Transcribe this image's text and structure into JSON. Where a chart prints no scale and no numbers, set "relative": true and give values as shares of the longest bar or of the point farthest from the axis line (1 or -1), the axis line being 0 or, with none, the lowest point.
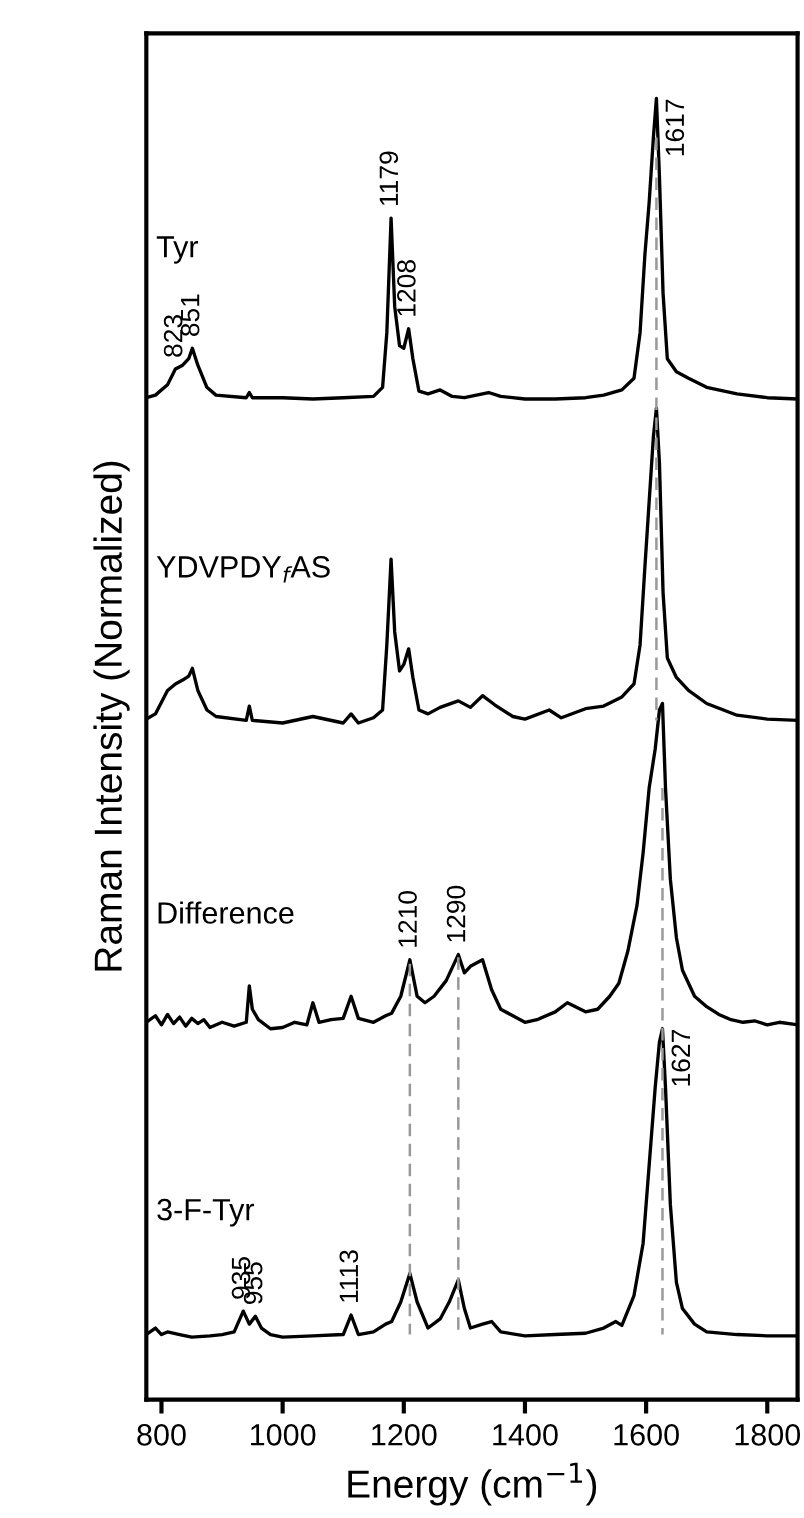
{
  "chart_data": {
    "type": "line",
    "relative": true,
    "xlabel": "Energy (cm$^{−1}$)",
    "ylabel": "Raman Intensity (Normalized)",
    "xlim": [
      775,
      1850
    ],
    "xticks": [
      800,
      1000,
      1200,
      1400,
      1600,
      1800
    ],
    "grid": false,
    "legend": false,
    "marker": "none",
    "series": [
      {
        "name": "Tyr",
        "color": "#000000",
        "line_style": "solid",
        "x": [
          775,
          790,
          810,
          823,
          835,
          845,
          851,
          860,
          875,
          890,
          940,
          945,
          950,
          1000,
          1050,
          1100,
          1150,
          1165,
          1172,
          1179,
          1185,
          1193,
          1200,
          1208,
          1215,
          1225,
          1240,
          1260,
          1280,
          1300,
          1320,
          1340,
          1360,
          1400,
          1450,
          1500,
          1530,
          1560,
          1580,
          1590,
          1598,
          1605,
          1612,
          1617,
          1622,
          1628,
          1635,
          1650,
          1670,
          1700,
          1750,
          1800,
          1850
        ],
        "values": [
          0.77,
          0.772,
          0.78,
          0.792,
          0.795,
          0.8,
          0.808,
          0.795,
          0.778,
          0.772,
          0.77,
          0.774,
          0.77,
          0.77,
          0.769,
          0.77,
          0.771,
          0.778,
          0.82,
          0.908,
          0.84,
          0.81,
          0.808,
          0.823,
          0.8,
          0.775,
          0.773,
          0.776,
          0.771,
          0.77,
          0.772,
          0.774,
          0.771,
          0.769,
          0.769,
          0.77,
          0.772,
          0.776,
          0.785,
          0.82,
          0.88,
          0.92,
          0.97,
          1.0,
          0.94,
          0.85,
          0.8,
          0.79,
          0.785,
          0.778,
          0.773,
          0.77,
          0.769
        ]
      },
      {
        "name": "YDVPDY$_{f}$AS",
        "color": "#000000",
        "line_style": "solid",
        "x": [
          775,
          790,
          810,
          823,
          835,
          845,
          851,
          860,
          875,
          890,
          940,
          945,
          950,
          1000,
          1050,
          1100,
          1113,
          1125,
          1150,
          1165,
          1172,
          1179,
          1185,
          1193,
          1200,
          1208,
          1215,
          1225,
          1240,
          1260,
          1290,
          1310,
          1330,
          1350,
          1380,
          1400,
          1440,
          1460,
          1500,
          1530,
          1560,
          1580,
          1590,
          1598,
          1605,
          1612,
          1617,
          1622,
          1628,
          1635,
          1650,
          1670,
          1700,
          1750,
          1800,
          1850
        ],
        "values": [
          0.523,
          0.527,
          0.545,
          0.55,
          0.553,
          0.556,
          0.562,
          0.545,
          0.53,
          0.525,
          0.522,
          0.533,
          0.522,
          0.52,
          0.525,
          0.52,
          0.527,
          0.52,
          0.524,
          0.53,
          0.58,
          0.646,
          0.59,
          0.56,
          0.565,
          0.577,
          0.555,
          0.53,
          0.527,
          0.532,
          0.537,
          0.532,
          0.541,
          0.534,
          0.525,
          0.523,
          0.53,
          0.524,
          0.531,
          0.533,
          0.54,
          0.55,
          0.58,
          0.64,
          0.69,
          0.74,
          0.762,
          0.72,
          0.62,
          0.57,
          0.555,
          0.545,
          0.535,
          0.526,
          0.523,
          0.522
        ]
      },
      {
        "name": "Difference",
        "color": "#000000",
        "line_style": "solid",
        "x": [
          775,
          790,
          800,
          810,
          820,
          830,
          840,
          850,
          860,
          870,
          880,
          900,
          920,
          940,
          945,
          950,
          960,
          980,
          1000,
          1020,
          1040,
          1050,
          1060,
          1080,
          1100,
          1113,
          1125,
          1150,
          1170,
          1180,
          1195,
          1210,
          1222,
          1235,
          1250,
          1270,
          1290,
          1300,
          1310,
          1330,
          1345,
          1360,
          1380,
          1400,
          1420,
          1450,
          1470,
          1500,
          1520,
          1540,
          1555,
          1570,
          1585,
          1595,
          1605,
          1615,
          1622,
          1627,
          1632,
          1640,
          1650,
          1660,
          1680,
          1700,
          1720,
          1740,
          1760,
          1780,
          1800,
          1820,
          1850
        ],
        "values": [
          0.29,
          0.295,
          0.288,
          0.296,
          0.289,
          0.294,
          0.287,
          0.293,
          0.289,
          0.292,
          0.286,
          0.29,
          0.287,
          0.29,
          0.318,
          0.3,
          0.292,
          0.285,
          0.286,
          0.29,
          0.288,
          0.305,
          0.29,
          0.292,
          0.293,
          0.31,
          0.293,
          0.29,
          0.295,
          0.297,
          0.31,
          0.338,
          0.31,
          0.305,
          0.31,
          0.322,
          0.342,
          0.328,
          0.333,
          0.338,
          0.315,
          0.3,
          0.295,
          0.29,
          0.292,
          0.298,
          0.305,
          0.298,
          0.3,
          0.31,
          0.32,
          0.345,
          0.38,
          0.42,
          0.47,
          0.5,
          0.53,
          0.535,
          0.47,
          0.4,
          0.355,
          0.33,
          0.31,
          0.302,
          0.296,
          0.292,
          0.29,
          0.291,
          0.288,
          0.29,
          0.288
        ]
      },
      {
        "name": "3-F-Tyr",
        "color": "#000000",
        "line_style": "solid",
        "x": [
          775,
          790,
          800,
          810,
          830,
          850,
          880,
          900,
          920,
          935,
          945,
          955,
          965,
          980,
          1000,
          1050,
          1100,
          1113,
          1125,
          1150,
          1170,
          1180,
          1195,
          1210,
          1222,
          1240,
          1260,
          1275,
          1290,
          1300,
          1310,
          1330,
          1345,
          1360,
          1400,
          1450,
          1500,
          1530,
          1550,
          1560,
          1580,
          1595,
          1605,
          1615,
          1622,
          1627,
          1632,
          1640,
          1650,
          1660,
          1680,
          1700,
          1750,
          1800,
          1850
        ],
        "values": [
          0.05,
          0.055,
          0.05,
          0.052,
          0.05,
          0.048,
          0.049,
          0.05,
          0.052,
          0.068,
          0.058,
          0.064,
          0.055,
          0.05,
          0.048,
          0.049,
          0.05,
          0.065,
          0.05,
          0.052,
          0.058,
          0.06,
          0.075,
          0.097,
          0.075,
          0.055,
          0.062,
          0.075,
          0.092,
          0.07,
          0.055,
          0.058,
          0.06,
          0.052,
          0.049,
          0.05,
          0.051,
          0.055,
          0.06,
          0.057,
          0.08,
          0.12,
          0.18,
          0.24,
          0.275,
          0.285,
          0.24,
          0.15,
          0.09,
          0.07,
          0.058,
          0.052,
          0.05,
          0.049,
          0.049
        ]
      },
      {
        "color": "#999999",
        "line_style": "dashed",
        "x": [
          1617,
          1617
        ],
        "values": [
          0.97,
          0.522
        ]
      },
      {
        "color": "#999999",
        "line_style": "dashed",
        "x": [
          1627,
          1627
        ],
        "values": [
          0.47,
          0.05
        ]
      },
      {
        "color": "#999999",
        "line_style": "dashed",
        "x": [
          1210,
          1210
        ],
        "values": [
          0.335,
          0.05
        ]
      },
      {
        "color": "#999999",
        "line_style": "dashed",
        "x": [
          1290,
          1290
        ],
        "values": [
          0.34,
          0.05
        ]
      }
    ],
    "annotations": [
      {
        "text": "823",
        "x": 823,
        "y": 0.792
      },
      {
        "text": "851",
        "x": 851,
        "y": 0.808
      },
      {
        "text": "1179",
        "x": 1179,
        "y": 0.908
      },
      {
        "text": "1208",
        "x": 1208,
        "y": 0.823
      },
      {
        "text": "1617",
        "x": 1617,
        "y": 1.0
      },
      {
        "text": "1210",
        "x": 1210,
        "y": 0.338
      },
      {
        "text": "1290",
        "x": 1290,
        "y": 0.342
      },
      {
        "text": "935",
        "x": 935,
        "y": 0.068
      },
      {
        "text": "955",
        "x": 955,
        "y": 0.064
      },
      {
        "text": "1113",
        "x": 1113,
        "y": 0.065
      },
      {
        "text": "1627",
        "x": 1627,
        "y": 0.285
      }
    ]
  }
}
